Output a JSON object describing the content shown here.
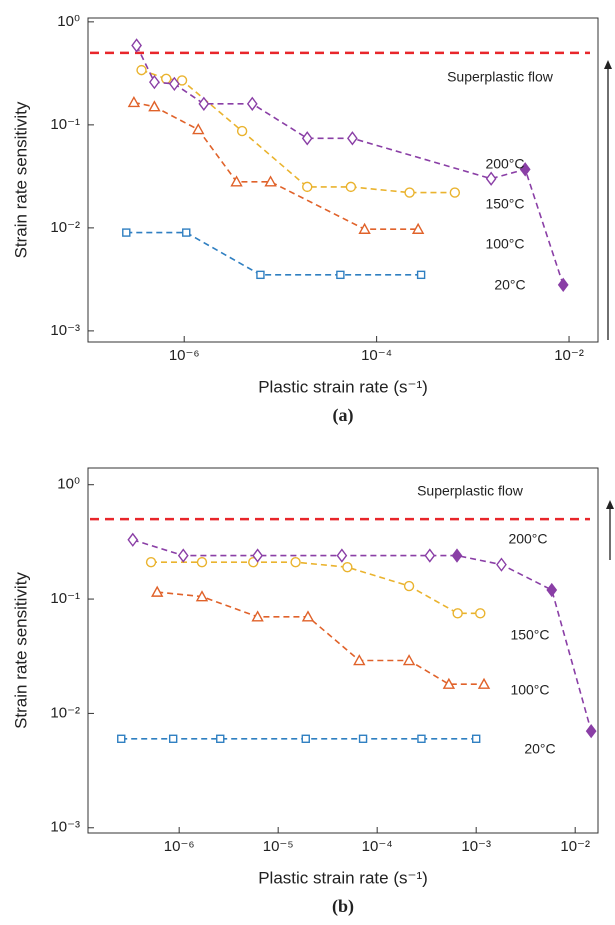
{
  "chart_data": [
    {
      "type": "line",
      "caption": "(a)",
      "x_label": "Plastic strain rate (s⁻¹)",
      "y_label": "Strain rate sensitivity",
      "log_x": true,
      "log_y": true,
      "xlim": [
        1e-07,
        0.02
      ],
      "ylim": [
        0.00078,
        1.09
      ],
      "xticks": [
        {
          "value": 1e-06,
          "label": "10⁻⁶"
        },
        {
          "value": 0.0001,
          "label": "10⁻⁴"
        },
        {
          "value": 0.01,
          "label": "10⁻²"
        }
      ],
      "yticks": [
        {
          "value": 0.001,
          "label": "10⁻³"
        },
        {
          "value": 0.01,
          "label": "10⁻²"
        },
        {
          "value": 0.1,
          "label": "10⁻¹"
        },
        {
          "value": 1,
          "label": "10⁰"
        }
      ],
      "reference": {
        "label": "Superplastic flow",
        "value": 0.5,
        "color": "#e8262b"
      },
      "series": [
        {
          "name": "20°C",
          "color": "#2f7fc1",
          "marker": "square",
          "x": [
            2.5e-07,
            1.05e-06,
            6.2e-06,
            4.2e-05,
            0.00029
          ],
          "values": [
            0.009,
            0.009,
            0.0035,
            0.0035,
            0.0035
          ],
          "filled": [
            false,
            false,
            false,
            false,
            false
          ]
        },
        {
          "name": "100°C",
          "color": "#e0622a",
          "marker": "triangle",
          "x": [
            3e-07,
            4.9e-07,
            1.4e-06,
            3.5e-06,
            7.9e-06,
            7.5e-05,
            0.00027
          ],
          "values": [
            0.165,
            0.15,
            0.09,
            0.028,
            0.028,
            0.0097,
            0.0097
          ],
          "filled": [
            false,
            false,
            false,
            false,
            false,
            false,
            false
          ]
        },
        {
          "name": "150°C",
          "color": "#eab32e",
          "marker": "circle",
          "x": [
            3.6e-07,
            6.5e-07,
            9.5e-07,
            4e-06,
            1.9e-05,
            5.4e-05,
            0.00022,
            0.00065
          ],
          "values": [
            0.34,
            0.28,
            0.27,
            0.087,
            0.025,
            0.025,
            0.022,
            0.022
          ],
          "filled": [
            false,
            false,
            false,
            false,
            false,
            false,
            false,
            false
          ]
        },
        {
          "name": "200°C",
          "color": "#8a3fa6",
          "marker": "diamond",
          "x": [
            3.2e-07,
            4.9e-07,
            7.9e-07,
            1.6e-06,
            5.1e-06,
            1.9e-05,
            5.6e-05,
            0.00155,
            0.0035,
            0.0087
          ],
          "values": [
            0.59,
            0.26,
            0.25,
            0.16,
            0.16,
            0.074,
            0.074,
            0.03,
            0.037,
            0.0028
          ],
          "filled": [
            false,
            false,
            false,
            false,
            false,
            false,
            false,
            false,
            true,
            true
          ]
        }
      ]
    },
    {
      "type": "line",
      "caption": "(b)",
      "x_label": "Plastic strain rate (s⁻¹)",
      "y_label": "Strain rate sensitivity",
      "log_x": true,
      "log_y": true,
      "xlim": [
        1.2e-07,
        0.017
      ],
      "ylim": [
        0.0009,
        1.4
      ],
      "xticks": [
        {
          "value": 1e-06,
          "label": "10⁻⁶"
        },
        {
          "value": 1e-05,
          "label": "10⁻⁵"
        },
        {
          "value": 0.0001,
          "label": "10⁻⁴"
        },
        {
          "value": 0.001,
          "label": "10⁻³"
        },
        {
          "value": 0.01,
          "label": "10⁻²"
        }
      ],
      "yticks": [
        {
          "value": 0.001,
          "label": "10⁻³"
        },
        {
          "value": 0.01,
          "label": "10⁻²"
        },
        {
          "value": 0.1,
          "label": "10⁻¹"
        },
        {
          "value": 1,
          "label": "10⁰"
        }
      ],
      "reference": {
        "label": "Superplastic flow",
        "value": 0.5,
        "color": "#e8262b"
      },
      "series": [
        {
          "name": "20°C",
          "color": "#2f7fc1",
          "marker": "square",
          "x": [
            2.6e-07,
            8.7e-07,
            2.6e-06,
            1.9e-05,
            7.2e-05,
            0.00028,
            0.001
          ],
          "values": [
            0.006,
            0.006,
            0.006,
            0.006,
            0.006,
            0.006,
            0.006
          ],
          "filled": [
            false,
            false,
            false,
            false,
            false,
            false,
            false
          ]
        },
        {
          "name": "100°C",
          "color": "#e0622a",
          "marker": "triangle",
          "x": [
            6e-07,
            1.7e-06,
            6.2e-06,
            2e-05,
            6.6e-05,
            0.00021,
            0.00053,
            0.0012
          ],
          "values": [
            0.115,
            0.105,
            0.07,
            0.07,
            0.029,
            0.029,
            0.018,
            0.018
          ],
          "filled": [
            false,
            false,
            false,
            false,
            false,
            false,
            false,
            false
          ]
        },
        {
          "name": "150°C",
          "color": "#eab32e",
          "marker": "circle",
          "x": [
            5.2e-07,
            1.7e-06,
            5.6e-06,
            1.5e-05,
            5e-05,
            0.00021,
            0.00065,
            0.0011
          ],
          "values": [
            0.21,
            0.21,
            0.21,
            0.21,
            0.19,
            0.13,
            0.075,
            0.075
          ],
          "filled": [
            false,
            false,
            false,
            false,
            false,
            false,
            false,
            false
          ]
        },
        {
          "name": "200°C",
          "color": "#8a3fa6",
          "marker": "diamond",
          "x": [
            3.4e-07,
            1.1e-06,
            6.2e-06,
            4.4e-05,
            0.00034,
            0.00064,
            0.0018,
            0.0058,
            0.0145
          ],
          "values": [
            0.33,
            0.24,
            0.24,
            0.24,
            0.24,
            0.24,
            0.2,
            0.12,
            0.007
          ],
          "filled": [
            false,
            false,
            false,
            false,
            false,
            true,
            false,
            true,
            true
          ]
        }
      ]
    }
  ]
}
